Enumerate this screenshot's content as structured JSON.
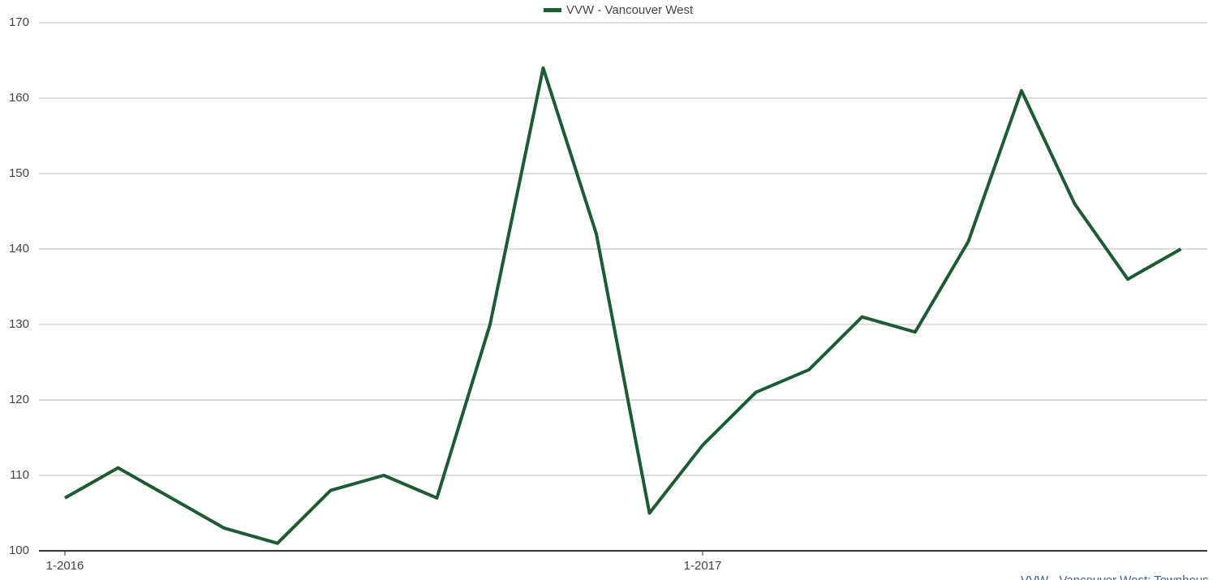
{
  "chart_data": {
    "type": "line",
    "categories": [
      "1-2016",
      null,
      null,
      null,
      null,
      null,
      null,
      null,
      null,
      null,
      null,
      null,
      "1-2017",
      null,
      null,
      null,
      null,
      null,
      null,
      null,
      null,
      null
    ],
    "series": [
      {
        "name": "VVW - Vancouver West",
        "color": "#1d5c30",
        "values": [
          107,
          111,
          107,
          103,
          101,
          108,
          110,
          107,
          130,
          164,
          142,
          105,
          114,
          121,
          124,
          131,
          129,
          141,
          161,
          146,
          136,
          140
        ]
      }
    ],
    "ylim": [
      100,
      170
    ],
    "yticks": [
      100,
      110,
      120,
      130,
      140,
      150,
      160,
      170
    ],
    "grid": true,
    "legend": "top",
    "note": "VVW - Vancouver West: Townhous"
  }
}
